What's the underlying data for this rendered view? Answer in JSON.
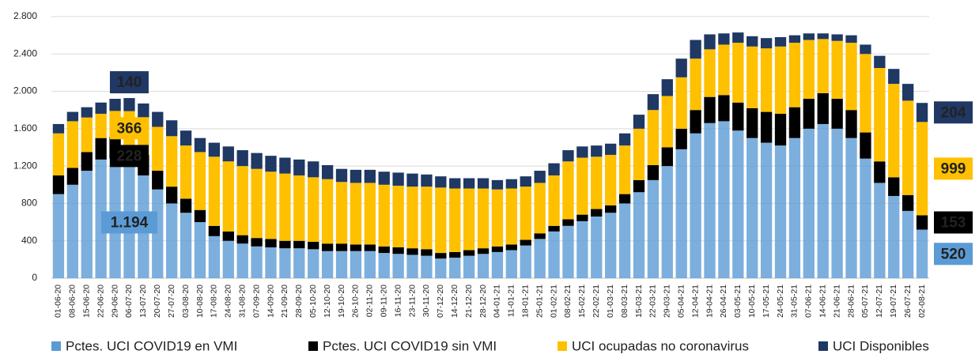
{
  "chart_data": {
    "type": "stacked-bar",
    "categories": [
      "01-06-20",
      "08-06-20",
      "15-06-20",
      "22-06-20",
      "29-06-20",
      "06-07-20",
      "13-07-20",
      "20-07-20",
      "27-07-20",
      "03-08-20",
      "10-08-20",
      "17-08-20",
      "24-08-20",
      "31-08-20",
      "07-09-20",
      "14-09-20",
      "21-09-20",
      "28-09-20",
      "05-10-20",
      "12-10-20",
      "19-10-20",
      "26-10-20",
      "02-11-20",
      "09-11-20",
      "16-11-20",
      "23-11-20",
      "30-11-20",
      "07-12-20",
      "14-12-20",
      "21-12-20",
      "28-12-20",
      "04-01-21",
      "11-01-21",
      "18-01-21",
      "25-01-21",
      "01-02-21",
      "08-02-21",
      "15-02-21",
      "22-02-21",
      "01-03-21",
      "08-03-21",
      "15-03-21",
      "22-03-21",
      "29-03-21",
      "05-04-21",
      "12-04-21",
      "19-04-21",
      "26-04-21",
      "03-05-21",
      "10-05-21",
      "17-05-21",
      "24-05-21",
      "31-05-21",
      "07-06-21",
      "14-06-21",
      "21-06-21",
      "28-06-21",
      "05-07-21",
      "12-07-21",
      "19-07-21",
      "26-07-21",
      "02-08-21"
    ],
    "series": [
      {
        "name": "Pctes. UCI COVID19 en VMI",
        "color": "#5b9bd5",
        "values": [
          900,
          1000,
          1150,
          1270,
          1280,
          1194,
          1100,
          950,
          800,
          700,
          600,
          450,
          400,
          370,
          340,
          330,
          320,
          320,
          310,
          290,
          290,
          290,
          290,
          270,
          260,
          250,
          240,
          210,
          220,
          240,
          260,
          280,
          300,
          350,
          420,
          500,
          560,
          610,
          660,
          700,
          800,
          920,
          1050,
          1200,
          1380,
          1550,
          1660,
          1680,
          1580,
          1500,
          1450,
          1420,
          1500,
          1600,
          1650,
          1600,
          1500,
          1280,
          1020,
          880,
          720,
          520
        ],
        "value_labels": [
          null,
          null,
          null,
          null,
          null,
          "1.194",
          null,
          null,
          null,
          null,
          null,
          null,
          null,
          null,
          null,
          null,
          null,
          null,
          null,
          null,
          null,
          null,
          null,
          null,
          null,
          null,
          null,
          null,
          null,
          null,
          null,
          null,
          null,
          null,
          null,
          null,
          null,
          null,
          null,
          null,
          null,
          null,
          null,
          null,
          null,
          null,
          null,
          null,
          null,
          null,
          null,
          null,
          null,
          null,
          null,
          null,
          null,
          null,
          null,
          null,
          null,
          "520"
        ]
      },
      {
        "name": "Pctes. UCI COVID19 sin VMI",
        "color": "#000000",
        "values": [
          200,
          180,
          200,
          230,
          230,
          228,
          220,
          200,
          180,
          150,
          130,
          110,
          100,
          90,
          90,
          90,
          80,
          80,
          80,
          80,
          80,
          70,
          70,
          70,
          70,
          70,
          70,
          60,
          60,
          60,
          60,
          60,
          60,
          60,
          60,
          60,
          70,
          70,
          80,
          80,
          100,
          130,
          160,
          200,
          220,
          250,
          280,
          280,
          300,
          320,
          330,
          340,
          330,
          320,
          330,
          320,
          300,
          280,
          230,
          200,
          170,
          153
        ],
        "value_labels": [
          null,
          null,
          null,
          null,
          null,
          "228",
          null,
          null,
          null,
          null,
          null,
          null,
          null,
          null,
          null,
          null,
          null,
          null,
          null,
          null,
          null,
          null,
          null,
          null,
          null,
          null,
          null,
          null,
          null,
          null,
          null,
          null,
          null,
          null,
          null,
          null,
          null,
          null,
          null,
          null,
          null,
          null,
          null,
          null,
          null,
          null,
          null,
          null,
          null,
          null,
          null,
          null,
          null,
          null,
          null,
          null,
          null,
          null,
          null,
          null,
          null,
          "153"
        ]
      },
      {
        "name": "UCI ocupadas no coronavirus",
        "color": "#ffc000",
        "values": [
          450,
          500,
          370,
          260,
          280,
          366,
          400,
          470,
          540,
          570,
          620,
          740,
          750,
          740,
          740,
          720,
          720,
          700,
          690,
          690,
          660,
          660,
          660,
          660,
          660,
          660,
          670,
          700,
          680,
          660,
          640,
          610,
          600,
          570,
          540,
          540,
          620,
          610,
          560,
          540,
          520,
          550,
          590,
          550,
          550,
          550,
          510,
          540,
          640,
          660,
          680,
          720,
          690,
          630,
          580,
          620,
          720,
          840,
          1000,
          1000,
          1010,
          999
        ],
        "value_labels": [
          null,
          null,
          null,
          null,
          null,
          "366",
          null,
          null,
          null,
          null,
          null,
          null,
          null,
          null,
          null,
          null,
          null,
          null,
          null,
          null,
          null,
          null,
          null,
          null,
          null,
          null,
          null,
          null,
          null,
          null,
          null,
          null,
          null,
          null,
          null,
          null,
          null,
          null,
          null,
          null,
          null,
          null,
          null,
          null,
          null,
          null,
          null,
          null,
          null,
          null,
          null,
          null,
          null,
          null,
          null,
          null,
          null,
          null,
          null,
          null,
          null,
          "999"
        ]
      },
      {
        "name": "UCI Disponibles",
        "color": "#1f3864",
        "values": [
          100,
          100,
          110,
          120,
          130,
          140,
          150,
          160,
          170,
          160,
          150,
          150,
          160,
          170,
          170,
          170,
          170,
          170,
          170,
          150,
          140,
          140,
          140,
          140,
          140,
          140,
          130,
          120,
          110,
          110,
          110,
          100,
          100,
          110,
          130,
          130,
          120,
          120,
          120,
          120,
          130,
          150,
          170,
          180,
          200,
          200,
          160,
          120,
          110,
          110,
          110,
          100,
          80,
          70,
          60,
          70,
          80,
          100,
          130,
          160,
          180,
          204
        ],
        "value_labels": [
          null,
          null,
          null,
          null,
          null,
          "140",
          null,
          null,
          null,
          null,
          null,
          null,
          null,
          null,
          null,
          null,
          null,
          null,
          null,
          null,
          null,
          null,
          null,
          null,
          null,
          null,
          null,
          null,
          null,
          null,
          null,
          null,
          null,
          null,
          null,
          null,
          null,
          null,
          null,
          null,
          null,
          null,
          null,
          null,
          null,
          null,
          null,
          null,
          null,
          null,
          null,
          null,
          null,
          null,
          null,
          null,
          null,
          null,
          null,
          null,
          null,
          "204"
        ]
      }
    ],
    "ylim": [
      0,
      2800
    ],
    "yticks": [
      0,
      400,
      800,
      {
        "value": 1200,
        "label": "1.200"
      },
      {
        "value": 1600,
        "label": "1.600"
      },
      {
        "value": 2000,
        "label": "2.000"
      },
      {
        "value": 2400,
        "label": "2.400"
      },
      {
        "value": 2800,
        "label": "2.800"
      }
    ],
    "grid": true,
    "legend": "bottom"
  }
}
